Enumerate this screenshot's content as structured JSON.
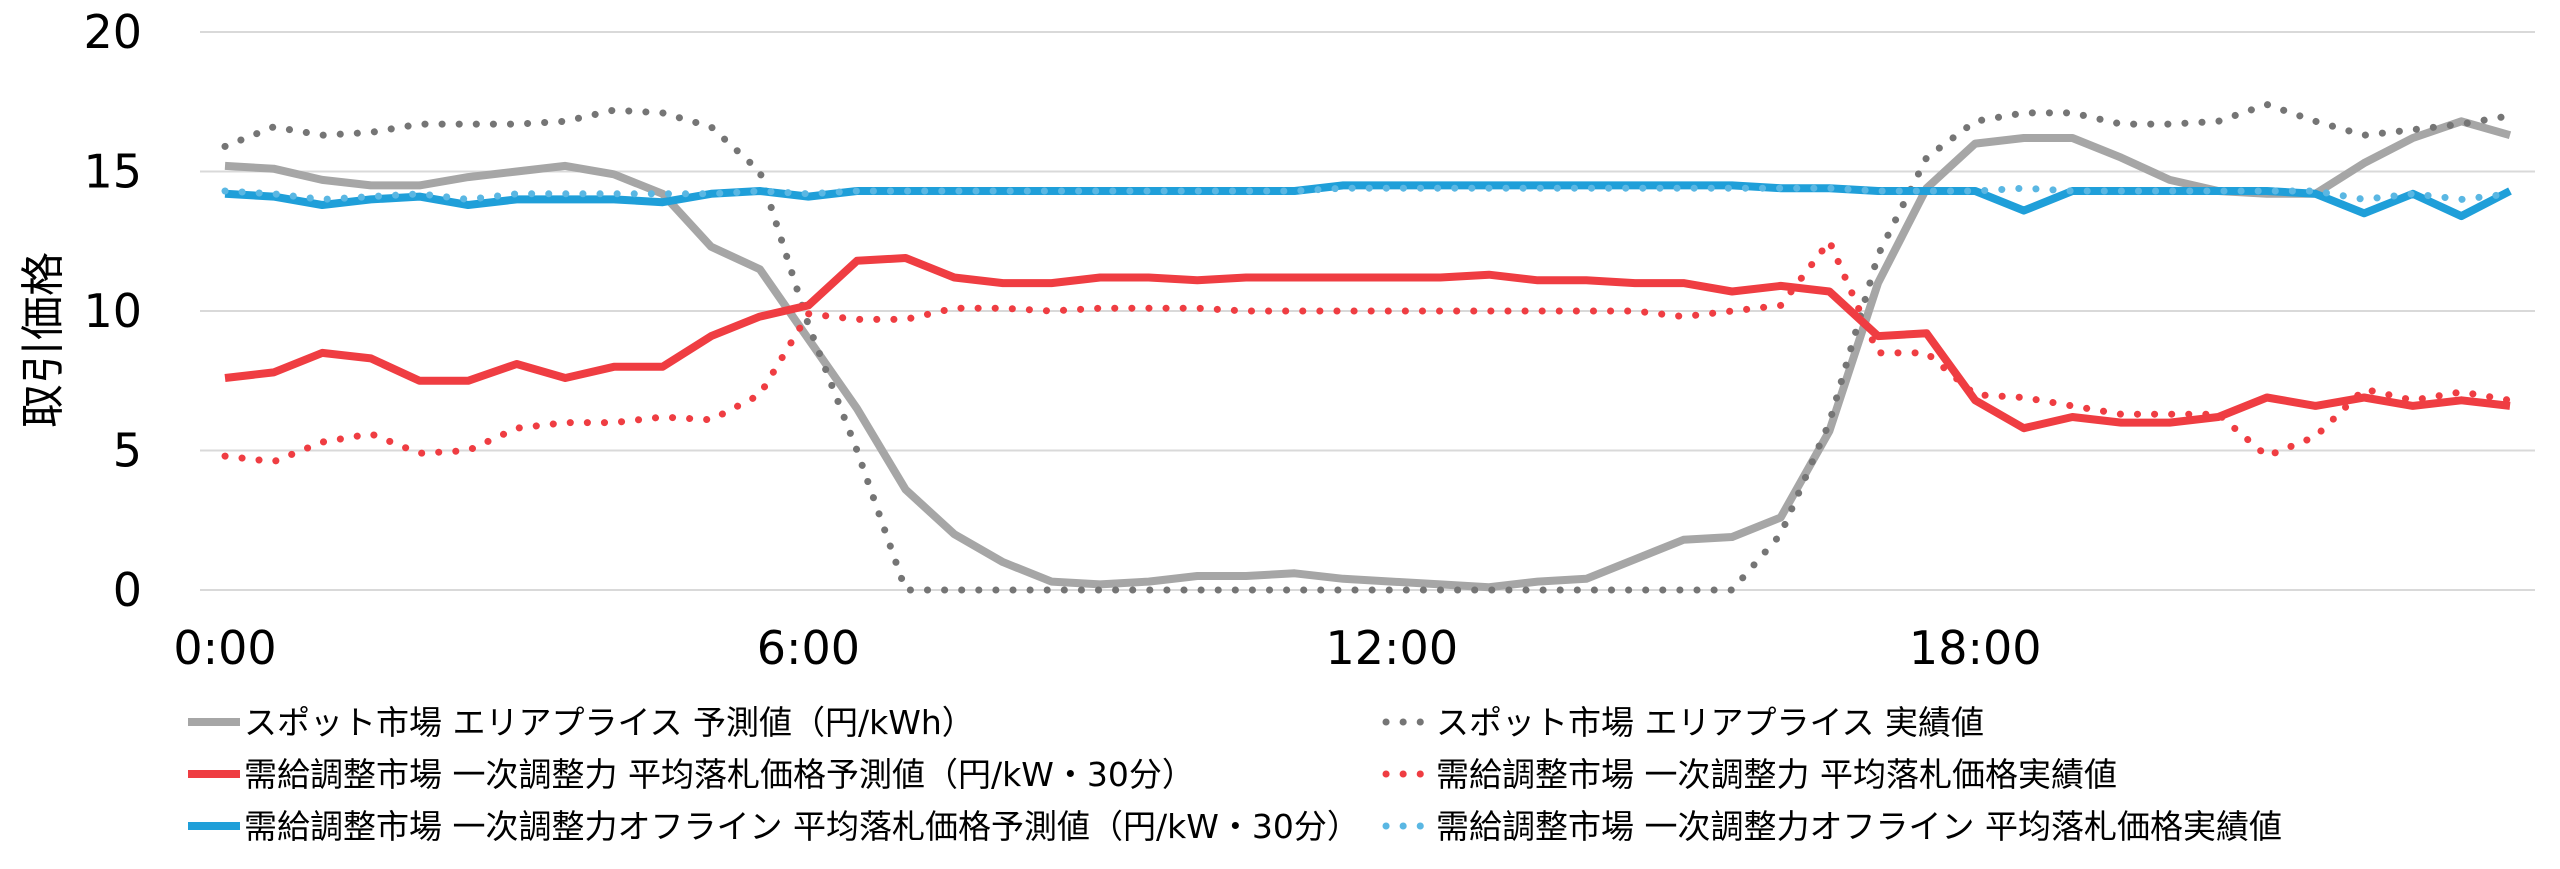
{
  "chart_data": {
    "type": "line",
    "title": "",
    "xlabel": "",
    "ylabel": "取引価格",
    "ylim": [
      0,
      20
    ],
    "xlim": [
      0,
      47
    ],
    "yticks": [
      "0",
      "5",
      "10",
      "15",
      "20"
    ],
    "yticks_values": [
      0,
      5,
      10,
      15,
      20
    ],
    "xticks": [
      "0:00",
      "6:00",
      "12:00",
      "18:00"
    ],
    "xticks_values": [
      0,
      12,
      24,
      36
    ],
    "grid": true,
    "legend_position": "bottom",
    "series": [
      {
        "name": "スポット市場 エリアプライス 予測値（円/kWh）",
        "color": "#a6a6a6",
        "style": "solid",
        "values": [
          15.2,
          15.1,
          14.7,
          14.5,
          14.5,
          14.8,
          15.0,
          15.2,
          14.9,
          14.2,
          12.3,
          11.5,
          9.0,
          6.5,
          3.6,
          2.0,
          1.0,
          0.3,
          0.2,
          0.3,
          0.5,
          0.5,
          0.6,
          0.4,
          0.3,
          0.2,
          0.1,
          0.3,
          0.4,
          1.1,
          1.8,
          1.9,
          2.6,
          5.7,
          11.0,
          14.4,
          16.0,
          16.2,
          16.2,
          15.5,
          14.7,
          14.3,
          14.2,
          14.2,
          15.3,
          16.2,
          16.8,
          16.3
        ]
      },
      {
        "name": "スポット市場 エリアプライス 実績値",
        "color": "#757575",
        "style": "dotted",
        "values": [
          15.9,
          16.6,
          16.3,
          16.4,
          16.7,
          16.7,
          16.7,
          16.8,
          17.2,
          17.1,
          16.6,
          15.0,
          9.5,
          5.0,
          0.0,
          0.0,
          0.0,
          0.0,
          0.0,
          0.0,
          0.0,
          0.0,
          0.0,
          0.0,
          0.0,
          0.0,
          0.0,
          0.0,
          0.0,
          0.0,
          0.0,
          0.0,
          2.0,
          6.0,
          12.0,
          15.5,
          16.8,
          17.1,
          17.1,
          16.7,
          16.7,
          16.8,
          17.4,
          16.8,
          16.3,
          16.5,
          16.7,
          17.0
        ]
      },
      {
        "name": "需給調整市場 一次調整力 平均落札価格予測値（円/kW・30分）",
        "color": "#ef3d42",
        "style": "solid",
        "values": [
          7.6,
          7.8,
          8.5,
          8.3,
          7.5,
          7.5,
          8.1,
          7.6,
          8.0,
          8.0,
          9.1,
          9.8,
          10.2,
          11.8,
          11.9,
          11.2,
          11.0,
          11.0,
          11.2,
          11.2,
          11.1,
          11.2,
          11.2,
          11.2,
          11.2,
          11.2,
          11.3,
          11.1,
          11.1,
          11.0,
          11.0,
          10.7,
          10.9,
          10.7,
          9.1,
          9.2,
          6.8,
          5.8,
          6.2,
          6.0,
          6.0,
          6.2,
          6.9,
          6.6,
          6.9,
          6.6,
          6.8,
          6.6
        ]
      },
      {
        "name": "需給調整市場 一次調整力 平均落札価格実績値",
        "color": "#ef3d42",
        "style": "dotted",
        "values": [
          4.8,
          4.6,
          5.3,
          5.6,
          4.9,
          5.0,
          5.8,
          6.0,
          6.0,
          6.2,
          6.1,
          7.0,
          9.9,
          9.7,
          9.7,
          10.1,
          10.1,
          10.0,
          10.1,
          10.1,
          10.1,
          10.0,
          10.0,
          10.0,
          10.0,
          10.0,
          10.0,
          10.0,
          10.0,
          10.0,
          9.8,
          10.0,
          10.2,
          12.5,
          8.5,
          8.5,
          7.0,
          6.9,
          6.6,
          6.3,
          6.3,
          6.3,
          4.8,
          5.5,
          7.2,
          6.8,
          7.1,
          6.8
        ]
      },
      {
        "name": "需給調整市場 一次調整力オフライン 平均落札価格予測値（円/kW・30分）",
        "color": "#1f9fd9",
        "style": "solid",
        "values": [
          14.2,
          14.1,
          13.8,
          14.0,
          14.1,
          13.8,
          14.0,
          14.0,
          14.0,
          13.9,
          14.2,
          14.3,
          14.1,
          14.3,
          14.3,
          14.3,
          14.3,
          14.3,
          14.3,
          14.3,
          14.3,
          14.3,
          14.3,
          14.5,
          14.5,
          14.5,
          14.5,
          14.5,
          14.5,
          14.5,
          14.5,
          14.5,
          14.4,
          14.4,
          14.3,
          14.3,
          14.3,
          13.6,
          14.3,
          14.3,
          14.3,
          14.3,
          14.3,
          14.2,
          13.5,
          14.2,
          13.4,
          14.3
        ]
      },
      {
        "name": "需給調整市場 一次調整力オフライン 平均落札価格実績値",
        "color": "#5ab7e3",
        "style": "dotted",
        "values": [
          14.3,
          14.2,
          14.0,
          14.1,
          14.2,
          14.0,
          14.2,
          14.2,
          14.2,
          14.2,
          14.2,
          14.3,
          14.2,
          14.3,
          14.3,
          14.3,
          14.3,
          14.3,
          14.3,
          14.3,
          14.3,
          14.3,
          14.3,
          14.4,
          14.4,
          14.4,
          14.4,
          14.4,
          14.4,
          14.4,
          14.4,
          14.4,
          14.4,
          14.4,
          14.3,
          14.3,
          14.3,
          14.4,
          14.3,
          14.3,
          14.3,
          14.3,
          14.3,
          14.3,
          14.0,
          14.2,
          14.0,
          14.2
        ]
      }
    ]
  }
}
